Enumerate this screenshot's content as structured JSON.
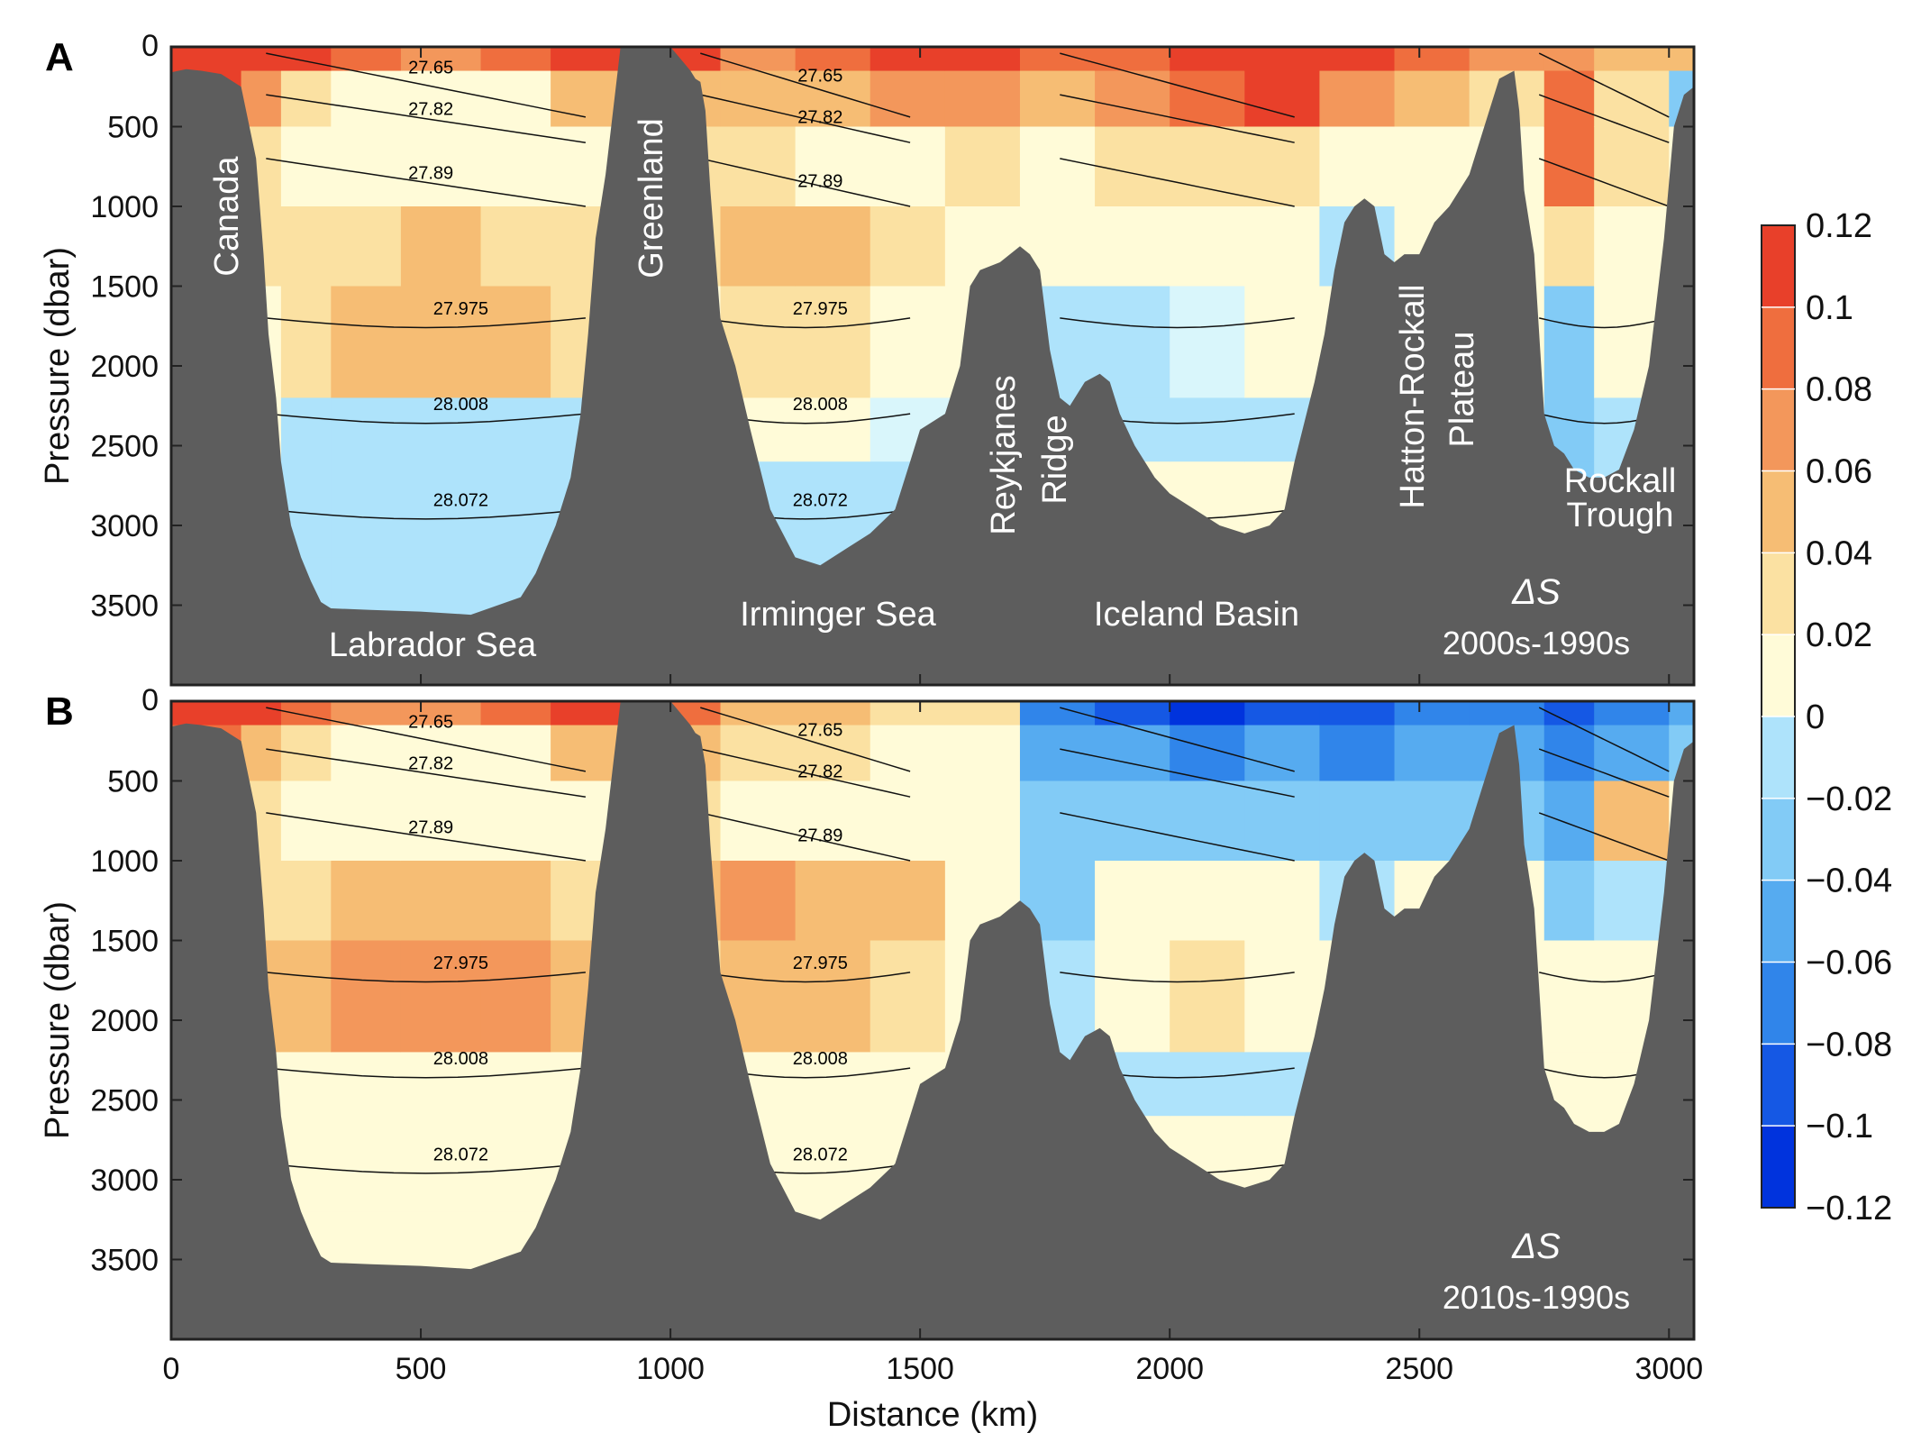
{
  "chart_data": {
    "type": "heatmap",
    "x_label": "Distance (km)",
    "y_label": "Pressure (dbar)",
    "xlim": [
      0,
      3050
    ],
    "ylim": [
      4000,
      0
    ],
    "x_ticks": [
      0,
      500,
      1000,
      1500,
      2000,
      2500,
      3000
    ],
    "y_ticks": [
      0,
      500,
      1000,
      1500,
      2000,
      2500,
      3000,
      3500
    ],
    "x_tick_labels": [
      "0",
      "500",
      "1000",
      "1500",
      "2000",
      "2500",
      "3000"
    ],
    "y_tick_labels": [
      "0",
      "500",
      "1000",
      "1500",
      "2000",
      "2500",
      "3000",
      "3500"
    ],
    "colorbar": {
      "min": -0.12,
      "max": 0.12,
      "levels": [
        0.12,
        0.1,
        0.08,
        0.06,
        0.04,
        0.02,
        0,
        -0.02,
        -0.04,
        -0.06,
        -0.08,
        -0.1,
        -0.12
      ],
      "tick_labels": [
        "0.12",
        "0.1",
        "0.08",
        "0.06",
        "0.04",
        "0.02",
        "0",
        "−0.02",
        "−0.04",
        "−0.06",
        "−0.08",
        "−0.1",
        "−0.12"
      ],
      "colors": [
        "#e8402a",
        "#ef6e3e",
        "#f3975b",
        "#f6bd74",
        "#fbe1a2",
        "#fffbd8",
        "#d9f6fb",
        "#aee3fb",
        "#82cbf6",
        "#56abf0",
        "#3085ea",
        "#1558e4",
        "#0033dd"
      ]
    },
    "bathymetry": {
      "x": [
        0,
        30,
        60,
        100,
        140,
        170,
        185,
        195,
        210,
        220,
        240,
        260,
        280,
        300,
        320,
        400,
        500,
        600,
        700,
        730,
        770,
        800,
        820,
        835,
        850,
        870,
        900,
        1000,
        1040,
        1050,
        1060,
        1070,
        1080,
        1100,
        1130,
        1160,
        1200,
        1250,
        1300,
        1350,
        1400,
        1450,
        1480,
        1500,
        1550,
        1580,
        1600,
        1620,
        1660,
        1700,
        1720,
        1740,
        1760,
        1780,
        1800,
        1830,
        1860,
        1880,
        1900,
        1930,
        1970,
        2000,
        2050,
        2100,
        2150,
        2200,
        2230,
        2250,
        2270,
        2290,
        2310,
        2330,
        2350,
        2370,
        2390,
        2410,
        2430,
        2450,
        2470,
        2500,
        2530,
        2560,
        2600,
        2630,
        2660,
        2690,
        2700,
        2710,
        2730,
        2750,
        2770,
        2790,
        2810,
        2840,
        2870,
        2900,
        2930,
        2960,
        2990,
        3010,
        3030,
        3050
      ],
      "depth": [
        160,
        140,
        150,
        170,
        250,
        700,
        1300,
        1800,
        2200,
        2600,
        3000,
        3200,
        3350,
        3480,
        3520,
        3530,
        3540,
        3560,
        3450,
        3300,
        3000,
        2700,
        2300,
        1800,
        1200,
        800,
        0,
        0,
        150,
        200,
        220,
        400,
        900,
        1700,
        2000,
        2400,
        2900,
        3200,
        3250,
        3150,
        3050,
        2900,
        2600,
        2400,
        2300,
        2000,
        1500,
        1400,
        1350,
        1250,
        1300,
        1400,
        1900,
        2200,
        2250,
        2100,
        2050,
        2100,
        2300,
        2500,
        2700,
        2800,
        2900,
        3000,
        3050,
        3000,
        2900,
        2600,
        2350,
        2100,
        1800,
        1400,
        1100,
        1000,
        950,
        1000,
        1300,
        1350,
        1300,
        1300,
        1100,
        1000,
        800,
        500,
        200,
        150,
        400,
        900,
        1300,
        2300,
        2500,
        2550,
        2650,
        2700,
        2700,
        2650,
        2400,
        2000,
        1200,
        500,
        300,
        250,
        250
      ],
      "fill_color": "#5d5d5d"
    },
    "regions": [
      "Canada",
      "Greenland",
      "Labrador Sea",
      "Irminger Sea",
      "Reykjanes",
      "Ridge",
      "Iceland Basin",
      "Hatton-Rockall",
      "Plateau",
      "Rockall",
      "Trough"
    ],
    "isopycnal_labels": [
      "27.65",
      "27.82",
      "27.89",
      "27.975",
      "28.008",
      "28.072"
    ],
    "panels": [
      {
        "letter": "A",
        "delta_label": "ΔS",
        "period": "2000s-1990s",
        "segments": [
          {
            "x0": 0,
            "x1": 140,
            "values": [
              0.14,
              0.11,
              0.06,
              0.03,
              0.02,
              0.02,
              0.02,
              0.02
            ]
          },
          {
            "x0": 140,
            "x1": 220,
            "values": [
              0.13,
              0.07,
              0.04,
              0.03,
              0.02,
              0.01,
              0.0,
              -0.01
            ]
          },
          {
            "x0": 220,
            "x1": 320,
            "values": [
              0.12,
              0.04,
              0.02,
              0.03,
              0.04,
              -0.01,
              -0.01,
              -0.01
            ]
          },
          {
            "x0": 320,
            "x1": 460,
            "values": [
              0.1,
              0.02,
              0.01,
              0.04,
              0.05,
              -0.01,
              -0.01,
              -0.01
            ]
          },
          {
            "x0": 460,
            "x1": 620,
            "values": [
              0.08,
              0.02,
              0.01,
              0.05,
              0.05,
              -0.01,
              -0.01,
              -0.01
            ]
          },
          {
            "x0": 620,
            "x1": 760,
            "values": [
              0.1,
              0.02,
              0.01,
              0.04,
              0.05,
              -0.01,
              -0.01,
              -0.01
            ]
          },
          {
            "x0": 760,
            "x1": 900,
            "values": [
              0.13,
              0.06,
              0.02,
              0.03,
              0.03,
              -0.01,
              -0.01,
              -0.01
            ]
          },
          {
            "x0": 1000,
            "x1": 1100,
            "values": [
              0.12,
              0.06,
              0.03,
              0.04,
              0.02,
              -0.01,
              -0.01,
              -0.01
            ]
          },
          {
            "x0": 1100,
            "x1": 1250,
            "values": [
              0.08,
              0.05,
              0.03,
              0.05,
              0.03,
              0.02,
              -0.01,
              -0.01
            ]
          },
          {
            "x0": 1250,
            "x1": 1400,
            "values": [
              0.09,
              0.06,
              0.02,
              0.06,
              0.03,
              0.01,
              -0.01,
              -0.01
            ]
          },
          {
            "x0": 1400,
            "x1": 1550,
            "values": [
              0.11,
              0.07,
              0.02,
              0.04,
              0.02,
              0.0,
              -0.01,
              -0.01
            ]
          },
          {
            "x0": 1550,
            "x1": 1700,
            "values": [
              0.12,
              0.08,
              0.03,
              0.02,
              0.01,
              0.0,
              0.0,
              0.0
            ]
          },
          {
            "x0": 1700,
            "x1": 1850,
            "values": [
              0.09,
              0.06,
              0.02,
              0.01,
              -0.01,
              -0.01,
              -0.01,
              -0.01
            ]
          },
          {
            "x0": 1850,
            "x1": 2000,
            "values": [
              0.1,
              0.07,
              0.03,
              0.01,
              -0.01,
              -0.01,
              0.01,
              0.01
            ]
          },
          {
            "x0": 2000,
            "x1": 2150,
            "values": [
              0.13,
              0.1,
              0.04,
              0.01,
              0.0,
              -0.01,
              0.01,
              0.01
            ]
          },
          {
            "x0": 2150,
            "x1": 2300,
            "values": [
              0.14,
              0.11,
              0.04,
              0.01,
              0.01,
              -0.01,
              0.01,
              0.01
            ]
          },
          {
            "x0": 2300,
            "x1": 2450,
            "values": [
              0.12,
              0.07,
              0.02,
              -0.01,
              0.01,
              0.01,
              0.01,
              0.01
            ]
          },
          {
            "x0": 2450,
            "x1": 2600,
            "values": [
              0.09,
              0.05,
              0.01,
              0.01,
              0.01,
              0.01,
              0.01,
              0.01
            ]
          },
          {
            "x0": 2600,
            "x1": 2750,
            "values": [
              0.08,
              0.04,
              0.02,
              0.02,
              0.02,
              0.02,
              0.02,
              0.02
            ]
          },
          {
            "x0": 2750,
            "x1": 2850,
            "values": [
              0.07,
              0.09,
              0.1,
              0.03,
              -0.02,
              -0.03,
              -0.02,
              -0.02
            ]
          },
          {
            "x0": 2850,
            "x1": 3000,
            "values": [
              0.06,
              0.04,
              0.03,
              0.02,
              0.01,
              -0.01,
              -0.01,
              -0.01
            ]
          },
          {
            "x0": 3000,
            "x1": 3050,
            "values": [
              0.05,
              -0.03,
              0.01,
              0.01,
              0.01,
              0.01,
              0.01,
              0.01
            ]
          }
        ]
      },
      {
        "letter": "B",
        "delta_label": "ΔS",
        "period": "2010s-1990s",
        "segments": [
          {
            "x0": 0,
            "x1": 140,
            "values": [
              0.13,
              0.1,
              0.05,
              0.03,
              0.02,
              0.02,
              0.02,
              0.02
            ]
          },
          {
            "x0": 140,
            "x1": 220,
            "values": [
              0.11,
              0.06,
              0.03,
              0.04,
              0.05,
              0.02,
              0.01,
              0.01
            ]
          },
          {
            "x0": 220,
            "x1": 320,
            "values": [
              0.1,
              0.03,
              0.02,
              0.04,
              0.06,
              0.02,
              0.01,
              0.01
            ]
          },
          {
            "x0": 320,
            "x1": 460,
            "values": [
              0.08,
              0.02,
              0.02,
              0.05,
              0.07,
              0.02,
              0.01,
              0.01
            ]
          },
          {
            "x0": 460,
            "x1": 620,
            "values": [
              0.07,
              0.02,
              0.02,
              0.06,
              0.08,
              0.02,
              0.01,
              0.01
            ]
          },
          {
            "x0": 620,
            "x1": 760,
            "values": [
              0.09,
              0.02,
              0.02,
              0.05,
              0.07,
              0.02,
              0.01,
              0.01
            ]
          },
          {
            "x0": 760,
            "x1": 900,
            "values": [
              0.12,
              0.05,
              0.02,
              0.04,
              0.05,
              0.02,
              0.01,
              0.01
            ]
          },
          {
            "x0": 1000,
            "x1": 1100,
            "values": [
              0.1,
              0.05,
              0.03,
              0.06,
              0.04,
              0.02,
              0.01,
              0.01
            ]
          },
          {
            "x0": 1100,
            "x1": 1250,
            "values": [
              0.06,
              0.04,
              0.02,
              0.07,
              0.05,
              0.02,
              0.01,
              0.01
            ]
          },
          {
            "x0": 1250,
            "x1": 1400,
            "values": [
              0.05,
              0.03,
              0.02,
              0.06,
              0.05,
              0.02,
              0.01,
              0.01
            ]
          },
          {
            "x0": 1400,
            "x1": 1550,
            "values": [
              0.04,
              0.02,
              0.01,
              0.05,
              0.03,
              0.01,
              0.01,
              0.01
            ]
          },
          {
            "x0": 1550,
            "x1": 1700,
            "values": [
              0.03,
              0.02,
              0.01,
              0.02,
              0.01,
              0.01,
              0.01,
              0.01
            ]
          },
          {
            "x0": 1700,
            "x1": 1850,
            "values": [
              -0.06,
              -0.04,
              -0.02,
              -0.02,
              -0.01,
              -0.01,
              0.01,
              0.01
            ]
          },
          {
            "x0": 1850,
            "x1": 2000,
            "values": [
              -0.08,
              -0.05,
              -0.02,
              0.01,
              0.02,
              -0.01,
              0.01,
              0.01
            ]
          },
          {
            "x0": 2000,
            "x1": 2150,
            "values": [
              -0.1,
              -0.06,
              -0.02,
              0.02,
              0.03,
              -0.01,
              0.01,
              0.01
            ]
          },
          {
            "x0": 2150,
            "x1": 2300,
            "values": [
              -0.08,
              -0.05,
              -0.02,
              0.01,
              0.01,
              -0.01,
              0.01,
              0.01
            ]
          },
          {
            "x0": 2300,
            "x1": 2450,
            "values": [
              -0.09,
              -0.06,
              -0.03,
              -0.01,
              0.01,
              0.01,
              0.01,
              0.01
            ]
          },
          {
            "x0": 2450,
            "x1": 2600,
            "values": [
              -0.07,
              -0.05,
              -0.02,
              0.01,
              0.01,
              0.01,
              0.01,
              0.01
            ]
          },
          {
            "x0": 2600,
            "x1": 2750,
            "values": [
              -0.07,
              -0.05,
              -0.03,
              0.01,
              0.01,
              0.01,
              0.01,
              0.01
            ]
          },
          {
            "x0": 2750,
            "x1": 2850,
            "values": [
              -0.08,
              -0.06,
              -0.04,
              -0.02,
              0.01,
              0.01,
              0.01,
              0.01
            ]
          },
          {
            "x0": 2850,
            "x1": 3000,
            "values": [
              -0.06,
              -0.04,
              0.05,
              -0.01,
              0.01,
              0.01,
              0.01,
              0.01
            ]
          },
          {
            "x0": 3000,
            "x1": 3050,
            "values": [
              -0.04,
              -0.02,
              0.01,
              0.01,
              0.01,
              0.01,
              0.01,
              0.01
            ]
          }
        ]
      }
    ]
  }
}
